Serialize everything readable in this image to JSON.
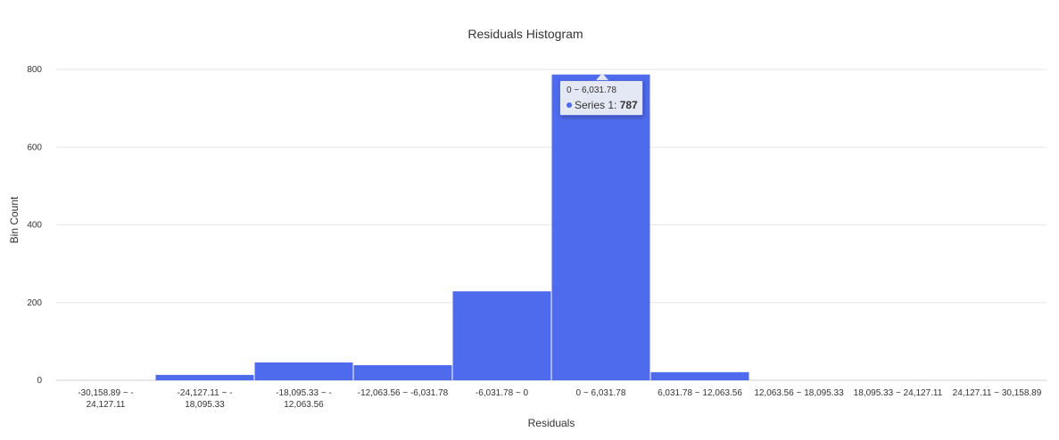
{
  "chart_data": {
    "type": "bar",
    "title": "Residuals Histogram",
    "xlabel": "Residuals",
    "ylabel": "Bin Count",
    "ylim": [
      0,
      800
    ],
    "yticks": [
      0,
      200,
      400,
      600,
      800
    ],
    "grid": true,
    "bar_color": "#4f6bed",
    "categories": [
      [
        "-30,158.89 ~ -",
        "24,127.11"
      ],
      [
        "-24,127.11 ~ -",
        "18,095.33"
      ],
      [
        "-18,095.33 ~ -",
        "12,063.56"
      ],
      [
        "-12,063.56 ~ -6,031.78"
      ],
      [
        "-6,031.78 ~ 0"
      ],
      [
        "0 ~ 6,031.78"
      ],
      [
        "6,031.78 ~ 12,063.56"
      ],
      [
        "12,063.56 ~ 18,095.33"
      ],
      [
        "18,095.33 ~ 24,127.11"
      ],
      [
        "24,127.11 ~ 30,158.89"
      ]
    ],
    "series": [
      {
        "values": [
          0,
          14,
          46,
          39,
          229,
          787,
          21,
          0,
          0,
          0
        ]
      }
    ],
    "tooltip": {
      "header": "0 ~ 6,031.78",
      "series_label": "Series 1",
      "value": "787"
    }
  }
}
